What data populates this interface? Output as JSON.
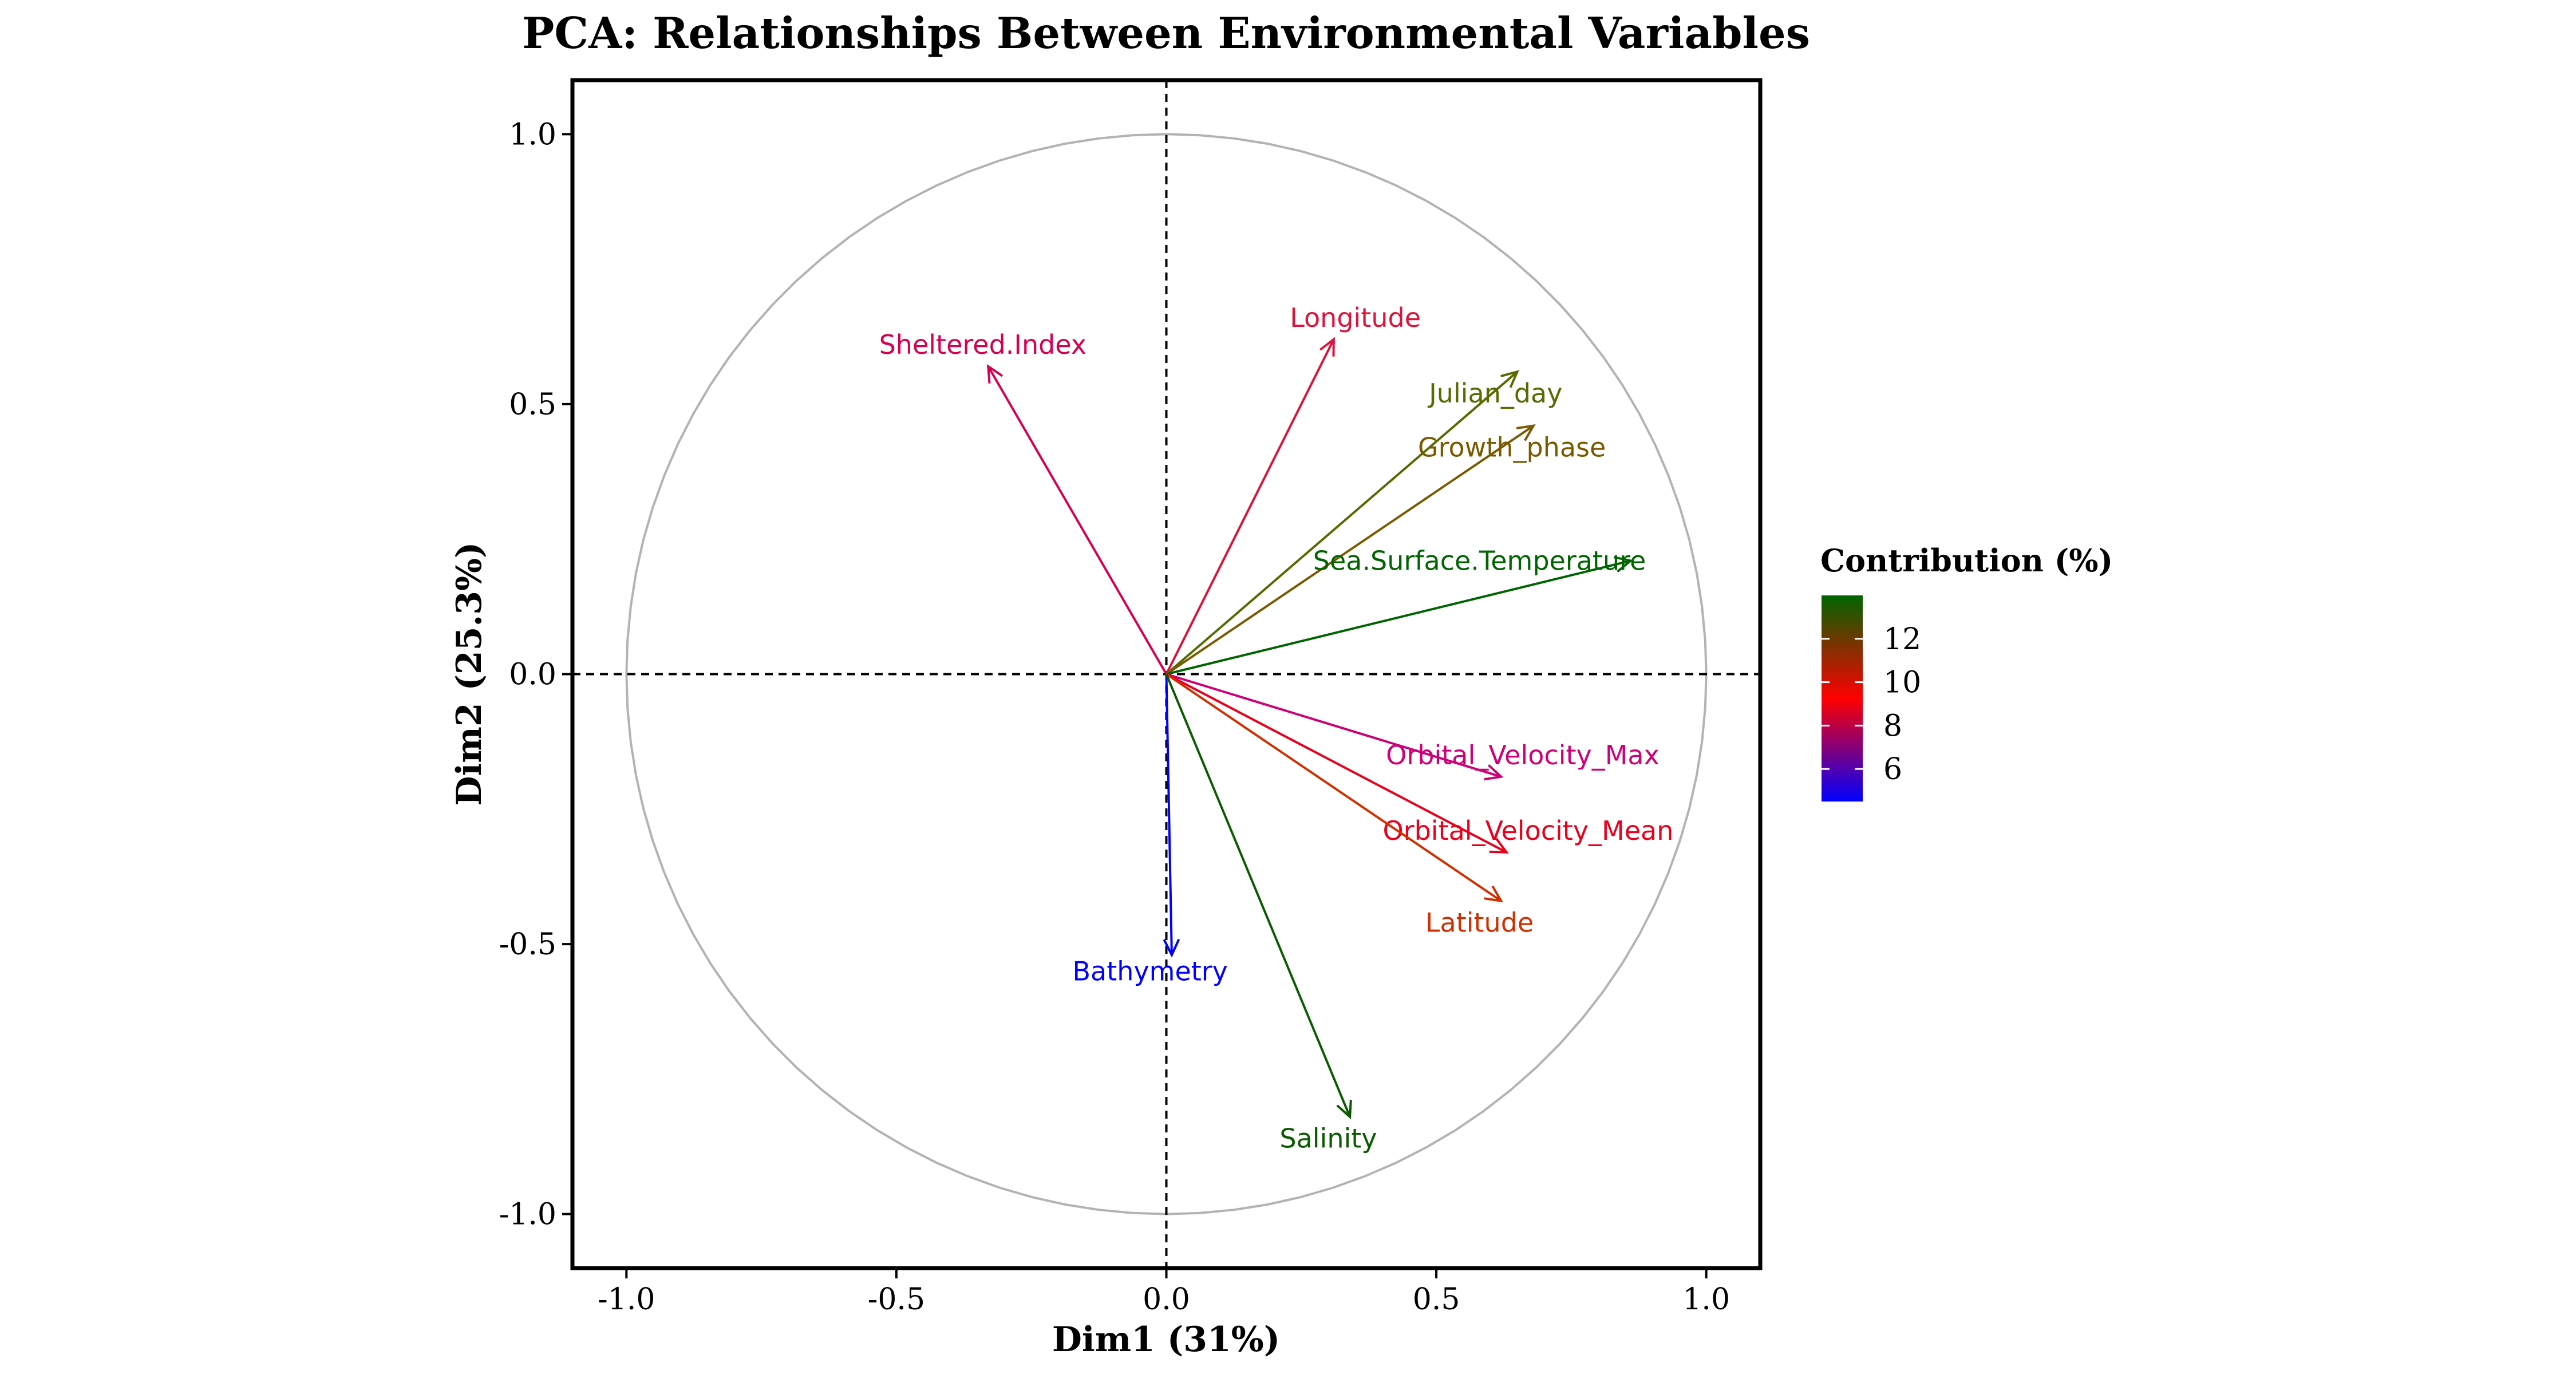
{
  "chart_data": {
    "type": "pca_variable_correlation_circle",
    "title": "PCA: Relationships Between Environmental Variables",
    "xlabel": "Dim1 (31%)",
    "ylabel": "Dim2 (25.3%)",
    "xlim": [
      -1.1,
      1.1
    ],
    "ylim": [
      -1.1,
      1.1
    ],
    "x_ticks": [
      -1.0,
      -0.5,
      0.0,
      0.5,
      1.0
    ],
    "y_ticks": [
      -1.0,
      -0.5,
      0.0,
      0.5,
      1.0
    ],
    "x_tick_labels": [
      "-1.0",
      "-0.5",
      "0.0",
      "0.5",
      "1.0"
    ],
    "y_tick_labels": [
      "-1.0",
      "-0.5",
      "0.0",
      "0.5",
      "1.0"
    ],
    "grid": false,
    "unit_circle": true,
    "variables": [
      {
        "name": "Longitude",
        "x": 0.31,
        "y": 0.62,
        "contribution": 8.5,
        "color": "#dc143c",
        "label_x": 0.35,
        "label_y": 0.66
      },
      {
        "name": "Sheltered.Index",
        "x": -0.33,
        "y": 0.57,
        "contribution": 7.0,
        "color": "#d6004f",
        "label_x": -0.34,
        "label_y": 0.61
      },
      {
        "name": "Julian_day",
        "x": 0.65,
        "y": 0.56,
        "contribution": 12.5,
        "color": "#556b00",
        "label_x": 0.61,
        "label_y": 0.52
      },
      {
        "name": "Growth_phase",
        "x": 0.68,
        "y": 0.46,
        "contribution": 11.5,
        "color": "#7a5a00",
        "label_x": 0.64,
        "label_y": 0.42
      },
      {
        "name": "Sea.Surface.Temperature",
        "x": 0.86,
        "y": 0.21,
        "contribution": 13.5,
        "color": "#006400",
        "label_x": 0.58,
        "label_y": 0.21
      },
      {
        "name": "Orbital_Velocity_Max",
        "x": 0.62,
        "y": -0.19,
        "contribution": 7.0,
        "color": "#cc0077",
        "label_x": 0.66,
        "label_y": -0.15
      },
      {
        "name": "Orbital_Velocity_Mean",
        "x": 0.63,
        "y": -0.33,
        "contribution": 8.2,
        "color": "#e8001c",
        "label_x": 0.67,
        "label_y": -0.29
      },
      {
        "name": "Latitude",
        "x": 0.62,
        "y": -0.42,
        "contribution": 10.2,
        "color": "#d03000",
        "label_x": 0.58,
        "label_y": -0.46
      },
      {
        "name": "Bathymetry",
        "x": 0.01,
        "y": -0.52,
        "contribution": 4.5,
        "color": "#0000ff",
        "label_x": -0.03,
        "label_y": -0.55
      },
      {
        "name": "Salinity",
        "x": 0.34,
        "y": -0.82,
        "contribution": 13.5,
        "color": "#0a5a00",
        "label_x": 0.3,
        "label_y": -0.86
      }
    ],
    "legend": {
      "title": "Contribution (%)",
      "position": "right",
      "ticks": [
        6,
        8,
        10,
        12
      ],
      "tick_labels": [
        "6",
        "8",
        "10",
        "12"
      ],
      "range": [
        4.5,
        14.0
      ],
      "gradient_low": "#0000ff",
      "gradient_mid": "#ff0000",
      "gradient_high": "#006400"
    }
  }
}
